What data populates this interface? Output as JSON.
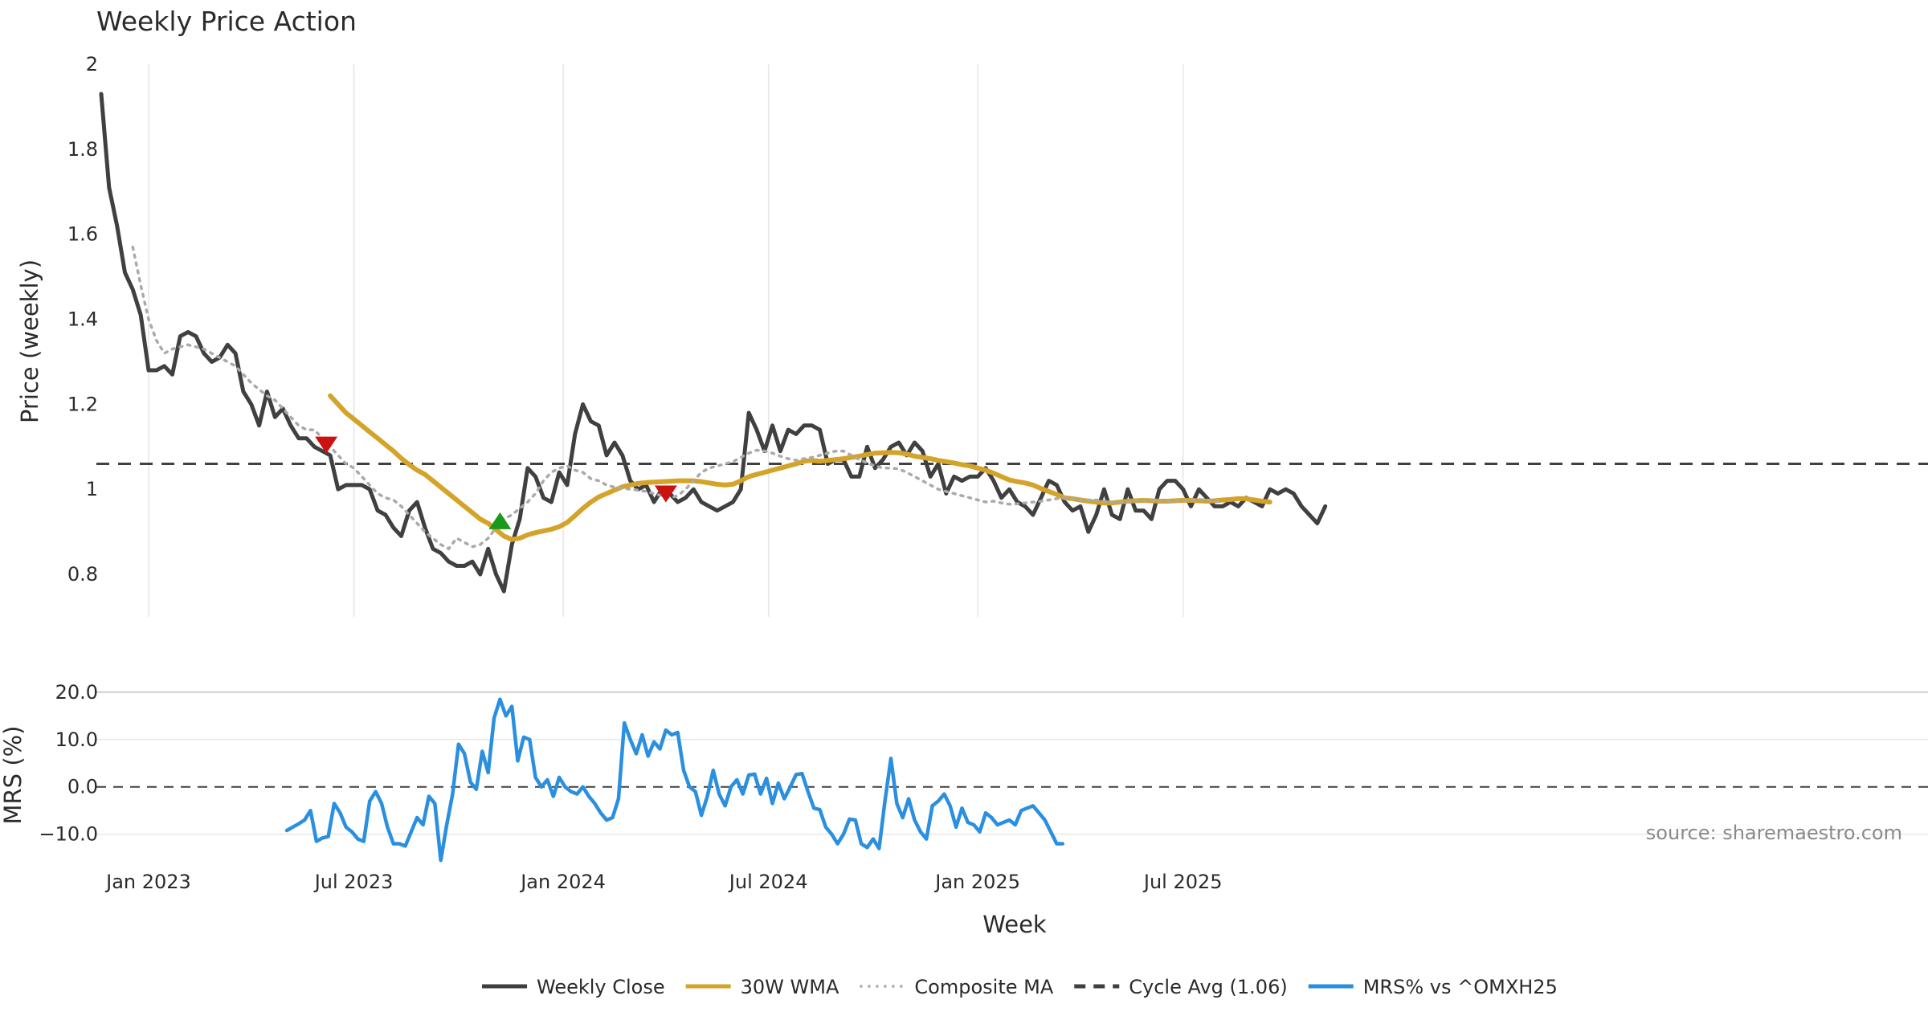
{
  "chart_data": {
    "type": "line",
    "title": "Weekly Price Action",
    "xlabel": "Week",
    "x_ticks": [
      "Jan 2023",
      "Jul 2023",
      "Jan 2024",
      "Jul 2024",
      "Jan 2025",
      "Jul 2025"
    ],
    "x_tick_weeks": [
      6,
      32,
      58.5,
      84.5,
      111,
      137
    ],
    "weeks_total": 152,
    "source": "source: sharemaestro.com",
    "price_panel": {
      "ylabel": "Price (weekly)",
      "ylim": [
        0.7,
        2.0
      ],
      "yticks": [
        "0.8",
        "1",
        "1.2",
        "1.4",
        "1.6",
        "1.8",
        "2"
      ],
      "ytick_values": [
        0.8,
        1.0,
        1.2,
        1.4,
        1.6,
        1.8,
        2.0
      ],
      "cycle_avg": 1.06,
      "series": [
        {
          "name": "Weekly Close",
          "color": "#404040",
          "style": "solid",
          "start_week": 0,
          "values": [
            1.93,
            1.71,
            1.62,
            1.51,
            1.47,
            1.41,
            1.28,
            1.28,
            1.29,
            1.27,
            1.36,
            1.37,
            1.36,
            1.32,
            1.3,
            1.31,
            1.34,
            1.32,
            1.23,
            1.2,
            1.15,
            1.23,
            1.17,
            1.19,
            1.15,
            1.12,
            1.12,
            1.1,
            1.09,
            1.08,
            1.0,
            1.01,
            1.01,
            1.01,
            1.0,
            0.95,
            0.94,
            0.91,
            0.89,
            0.95,
            0.97,
            0.91,
            0.86,
            0.85,
            0.83,
            0.82,
            0.82,
            0.83,
            0.8,
            0.86,
            0.8,
            0.76,
            0.87,
            0.93,
            1.05,
            1.03,
            0.98,
            0.97,
            1.04,
            1.01,
            1.13,
            1.2,
            1.16,
            1.15,
            1.08,
            1.11,
            1.08,
            1.02,
            1.0,
            1.01,
            0.97,
            1.0,
            0.99,
            0.97,
            0.98,
            1.0,
            0.97,
            0.96,
            0.95,
            0.96,
            0.97,
            1.0,
            1.18,
            1.14,
            1.09,
            1.15,
            1.09,
            1.14,
            1.13,
            1.15,
            1.15,
            1.14,
            1.06,
            1.07,
            1.07,
            1.03,
            1.03,
            1.1,
            1.05,
            1.07,
            1.1,
            1.11,
            1.08,
            1.11,
            1.09,
            1.03,
            1.06,
            0.99,
            1.03,
            1.02,
            1.03,
            1.03,
            1.05,
            1.02,
            0.98,
            1.0,
            0.97,
            0.96,
            0.94,
            0.98,
            1.02,
            1.01,
            0.97,
            0.95,
            0.96,
            0.9,
            0.94,
            1.0,
            0.94,
            0.93,
            1.0,
            0.95,
            0.95,
            0.93,
            1.0,
            1.02,
            1.02,
            1.0,
            0.96,
            1.0,
            0.98,
            0.96,
            0.96,
            0.97,
            0.96,
            0.98,
            0.97,
            0.96,
            1.0,
            0.99,
            1.0,
            0.99,
            0.96,
            0.94,
            0.92,
            0.96
          ]
        },
        {
          "name": "30W WMA",
          "color": "#d4a32a",
          "style": "solid",
          "start_week": 29,
          "values": [
            1.22,
            1.2,
            1.18,
            1.165,
            1.15,
            1.135,
            1.12,
            1.105,
            1.09,
            1.073,
            1.058,
            1.045,
            1.035,
            1.02,
            1.005,
            0.99,
            0.975,
            0.96,
            0.945,
            0.93,
            0.92,
            0.905,
            0.89,
            0.882,
            0.885,
            0.893,
            0.898,
            0.902,
            0.906,
            0.912,
            0.922,
            0.938,
            0.955,
            0.97,
            0.982,
            0.99,
            0.998,
            1.006,
            1.01,
            1.014,
            1.016,
            1.017,
            1.018,
            1.019,
            1.02,
            1.02,
            1.02,
            1.018,
            1.015,
            1.012,
            1.01,
            1.012,
            1.02,
            1.03,
            1.035,
            1.04,
            1.045,
            1.05,
            1.055,
            1.06,
            1.066,
            1.068,
            1.066,
            1.068,
            1.07,
            1.072,
            1.075,
            1.078,
            1.082,
            1.085,
            1.086,
            1.087,
            1.086,
            1.083,
            1.078,
            1.075,
            1.072,
            1.068,
            1.065,
            1.062,
            1.058,
            1.055,
            1.05,
            1.045,
            1.038,
            1.03,
            1.022,
            1.018,
            1.015,
            1.01,
            1.002,
            0.995,
            0.988,
            0.98,
            0.978,
            0.975,
            0.972,
            0.97,
            0.968,
            0.968,
            0.97,
            0.972,
            0.973,
            0.974,
            0.973,
            0.972,
            0.972,
            0.973,
            0.974,
            0.974,
            0.973,
            0.972,
            0.973,
            0.975,
            0.976,
            0.978,
            0.978,
            0.975,
            0.972,
            0.97
          ]
        },
        {
          "name": "Composite MA",
          "color": "#aaaaaa",
          "style": "dotted",
          "start_week": 4,
          "values": [
            1.57,
            1.48,
            1.4,
            1.35,
            1.32,
            1.33,
            1.335,
            1.34,
            1.335,
            1.33,
            1.32,
            1.31,
            1.3,
            1.29,
            1.27,
            1.25,
            1.235,
            1.22,
            1.21,
            1.19,
            1.17,
            1.15,
            1.14,
            1.14,
            1.12,
            1.1,
            1.08,
            1.06,
            1.05,
            1.03,
            1.01,
            0.99,
            0.98,
            0.975,
            0.96,
            0.94,
            0.92,
            0.9,
            0.885,
            0.87,
            0.86,
            0.885,
            0.875,
            0.865,
            0.87,
            0.885,
            0.91,
            0.93,
            0.94,
            0.955,
            0.97,
            0.99,
            1.02,
            1.04,
            1.05,
            1.055,
            1.045,
            1.04,
            1.025,
            1.02,
            1.01,
            1.005,
            1.003,
            1.0,
            0.998,
            0.995,
            0.99,
            0.985,
            0.98,
            0.985,
            1.0,
            1.02,
            1.04,
            1.05,
            1.055,
            1.06,
            1.065,
            1.075,
            1.085,
            1.092,
            1.09,
            1.085,
            1.078,
            1.072,
            1.068,
            1.072,
            1.075,
            1.08,
            1.085,
            1.09,
            1.09,
            1.08,
            1.07,
            1.062,
            1.055,
            1.05,
            1.05,
            1.048,
            1.04,
            1.03,
            1.02,
            1.01,
            1.0,
            0.995,
            0.99,
            0.985,
            0.98,
            0.975,
            0.97,
            0.972,
            0.968,
            0.965,
            0.966,
            0.968,
            0.97,
            0.972,
            0.975,
            0.978,
            0.98,
            0.978,
            0.975,
            0.975,
            0.975,
            0.972,
            0.97,
            0.97,
            0.97,
            0.972,
            0.973,
            0.974,
            0.973,
            0.972,
            0.972,
            0.973,
            0.975,
            0.976,
            0.975,
            0.972,
            0.97
          ]
        }
      ],
      "signals": [
        {
          "type": "sell",
          "week": 28.5,
          "value": 1.105,
          "color": "#cc1111"
        },
        {
          "type": "buy",
          "week": 50.5,
          "value": 0.925,
          "color": "#1a9a1a"
        },
        {
          "type": "sell",
          "week": 71.5,
          "value": 0.99,
          "color": "#cc1111"
        }
      ]
    },
    "mrs_panel": {
      "ylabel": "MRS (%)",
      "ylim": [
        -16.5,
        22.0
      ],
      "yticks": [
        "−10.0",
        "0.0",
        "10.0",
        "20.0"
      ],
      "ytick_values": [
        -10,
        0,
        10,
        20
      ],
      "zero_line": 0,
      "series": [
        {
          "name": "MRS% vs ^OMXH25",
          "color": "#2b8fe0",
          "start_week": 23.5,
          "step": 0.75,
          "values": [
            -9.2,
            -8.5,
            -7.8,
            -7.0,
            -5.0,
            -11.5,
            -10.8,
            -10.5,
            -3.5,
            -5.5,
            -8.5,
            -9.5,
            -11.0,
            -11.5,
            -3.0,
            -1.0,
            -3.5,
            -8.5,
            -12.0,
            -12.0,
            -12.5,
            -9.5,
            -6.5,
            -8.0,
            -2.0,
            -3.5,
            -15.5,
            -8.0,
            -1.5,
            9.0,
            7.0,
            1.0,
            -0.5,
            7.5,
            3.0,
            14.5,
            18.5,
            15.0,
            17.0,
            5.5,
            10.5,
            10.0,
            2.0,
            0.0,
            1.5,
            -2.0,
            2.0,
            0.0,
            -1.0,
            -1.5,
            0.0,
            -2.0,
            -3.5,
            -5.5,
            -7.0,
            -6.5,
            -2.5,
            13.5,
            10.0,
            7.0,
            11.0,
            6.5,
            9.5,
            8.0,
            12.0,
            11.0,
            11.5,
            3.5,
            0.0,
            -1.0,
            -6.0,
            -2.0,
            3.5,
            -1.5,
            -4.0,
            0.0,
            1.5,
            -1.5,
            2.5,
            2.7,
            -1.5,
            1.8,
            -3.5,
            0.8,
            -2.5,
            0.0,
            2.6,
            2.8,
            -1.0,
            -4.5,
            -4.8,
            -8.5,
            -10.0,
            -12.0,
            -10.0,
            -6.8,
            -7.0,
            -12.0,
            -12.8,
            -11.0,
            -13.0,
            -3.0,
            6.0,
            -3.5,
            -6.5,
            -2.5,
            -7.0,
            -9.5,
            -11.0,
            -4.0,
            -3.0,
            -1.5,
            -4.0,
            -8.5,
            -4.5,
            -7.5,
            -8.0,
            -9.5,
            -5.5,
            -6.5,
            -8.0,
            -7.5,
            -7.0,
            -8.0,
            -5.0,
            -4.5,
            -4.0,
            -5.5,
            -7.0,
            -9.5,
            -12.0,
            -12.0
          ]
        }
      ]
    },
    "legend": [
      {
        "label": "Weekly Close",
        "color": "#404040",
        "style": "solid"
      },
      {
        "label": "30W WMA",
        "color": "#d4a32a",
        "style": "solid"
      },
      {
        "label": "Composite MA",
        "color": "#aaaaaa",
        "style": "dotted"
      },
      {
        "label": "Cycle Avg (1.06)",
        "color": "#404040",
        "style": "dashed"
      },
      {
        "label": "MRS% vs ^OMXH25",
        "color": "#2b8fe0",
        "style": "solid"
      }
    ]
  }
}
